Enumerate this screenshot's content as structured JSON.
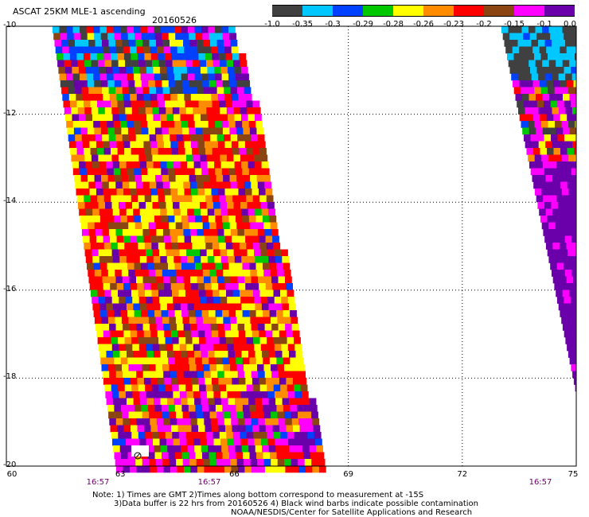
{
  "header": {
    "title": "ASCAT 25KM MLE-1 ascending",
    "date": "20160526"
  },
  "colorbar": {
    "colors": [
      "#404040",
      "#00c8ff",
      "#0040ff",
      "#00c800",
      "#ffff00",
      "#ff8c00",
      "#ff0000",
      "#8b4513",
      "#ff00ff",
      "#6a00aa"
    ],
    "ticks": [
      "-1.0",
      "-0.35",
      "-0.3",
      "-0.29",
      "-0.28",
      "-0.26",
      "-0.23",
      "-0.2",
      "-0.15",
      "-0.1",
      "0.0"
    ]
  },
  "axes": {
    "lat_ticks": [
      "-10",
      "-12",
      "-14",
      "-16",
      "-18",
      "-20"
    ],
    "lon_ticks": [
      "60",
      "63",
      "66",
      "69",
      "72",
      "75"
    ],
    "time_labels": [
      "16:57",
      "16:57",
      "16:57"
    ]
  },
  "notes": [
    "Note: 1) Times are GMT 2)Times along bottom correspond to measurement at -15S",
    "3)Data buffer is 22 hrs from 20160526 4) Black wind barbs indicate possible contamination",
    "NOAA/NESDIS/Center for Satellite Applications and Research"
  ]
}
